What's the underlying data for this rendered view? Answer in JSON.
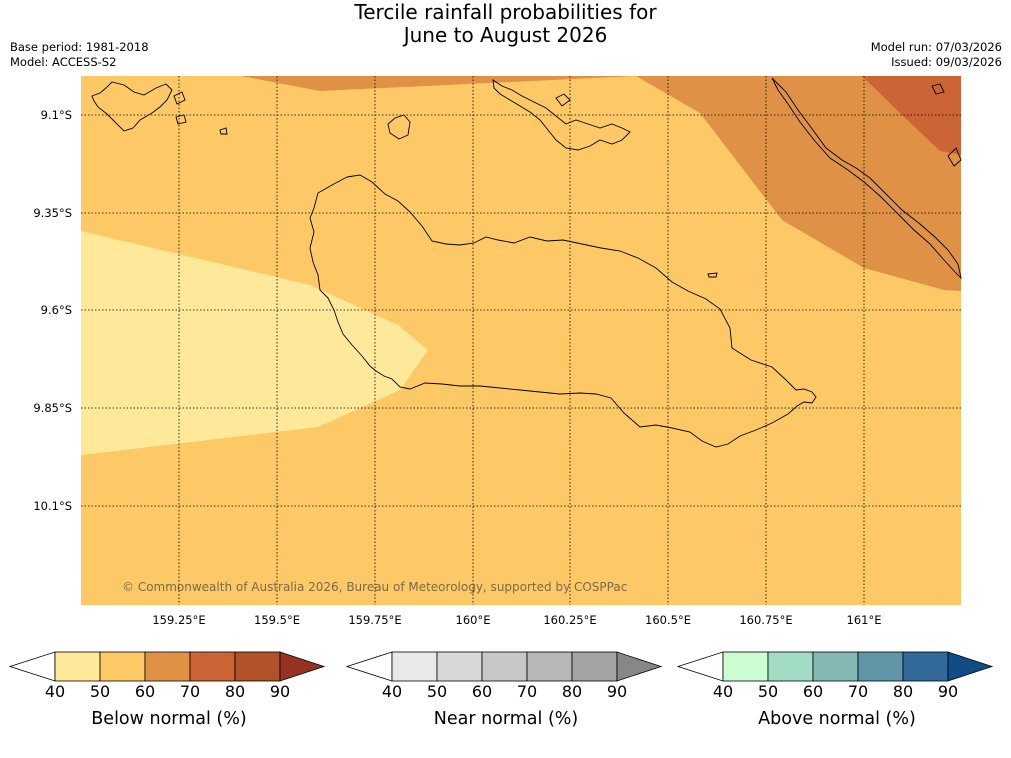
{
  "title": {
    "line1": "Tercile rainfall probabilities for",
    "line2": "June to August 2026"
  },
  "meta_left": {
    "base_period": "Base period: 1981-2018",
    "model": "Model: ACCESS-S2"
  },
  "meta_right": {
    "model_run": "Model run: 07/03/2026",
    "issued": "Issued: 09/03/2026"
  },
  "map": {
    "lat_labels": [
      "9.1°S",
      "9.35°S",
      "9.6°S",
      "9.85°S",
      "10.1°S"
    ],
    "lon_labels": [
      "159.25°E",
      "159.5°E",
      "159.75°E",
      "160°E",
      "160.25°E",
      "160.5°E",
      "160.75°E",
      "161°E"
    ],
    "credit": "© Commonwealth of Australia 2026, Bureau of Meteorology, supported by COSPPac",
    "colors": {
      "below_40_50": "#fee99b",
      "below_50_60": "#fdc966",
      "below_60_70": "#df9245",
      "below_70_80": "#cb6535"
    }
  },
  "colorbars": [
    {
      "title": "Below normal (%)",
      "ticks": [
        "40",
        "50",
        "60",
        "70",
        "80",
        "90"
      ],
      "colors": [
        "#ffffff",
        "#fee99b",
        "#fdc966",
        "#df9245",
        "#cb6535",
        "#b0522a",
        "#943322"
      ]
    },
    {
      "title": "Near normal (%)",
      "ticks": [
        "40",
        "50",
        "60",
        "70",
        "80",
        "90"
      ],
      "colors": [
        "#ffffff",
        "#e9e9e9",
        "#d8d8d8",
        "#c8c8c8",
        "#b7b7b7",
        "#a3a3a3",
        "#878787"
      ]
    },
    {
      "title": "Above normal (%)",
      "ticks": [
        "40",
        "50",
        "60",
        "70",
        "80",
        "90"
      ],
      "colors": [
        "#ffffff",
        "#ccfcd2",
        "#a3dcc4",
        "#84b8b3",
        "#5f95a4",
        "#336a9a",
        "#114c87"
      ]
    }
  ]
}
